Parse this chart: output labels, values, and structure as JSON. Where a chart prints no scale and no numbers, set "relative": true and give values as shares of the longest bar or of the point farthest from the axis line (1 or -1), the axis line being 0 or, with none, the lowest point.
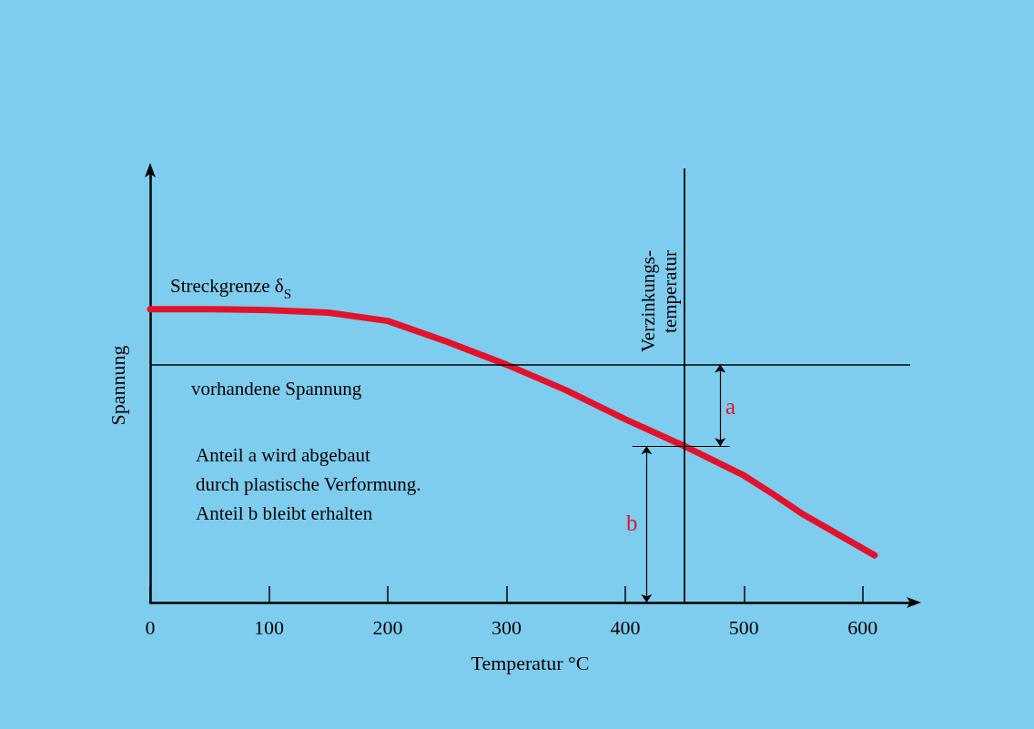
{
  "chart_data": {
    "type": "line",
    "relative": true,
    "xlabel": "Temperatur °C",
    "ylabel": "Spannung",
    "x": [
      0,
      50,
      100,
      150,
      200,
      250,
      300,
      350,
      400,
      450,
      500,
      525,
      550,
      610
    ],
    "series": [
      {
        "color": "#e3122c",
        "values": [
          1.0,
          1.0,
          0.997,
          0.988,
          0.96,
          0.889,
          0.811,
          0.724,
          0.625,
          0.533,
          0.433,
          0.368,
          0.3,
          0.161
        ]
      }
    ],
    "xlim": [
      0,
      640
    ],
    "xticks": [
      0,
      100,
      200,
      300,
      400,
      500,
      600
    ],
    "ref_lines": [
      {
        "axis": "y",
        "value": 0.811,
        "label": "vorhandene Spannung"
      },
      {
        "axis": "x",
        "value": 450,
        "label": "Verzinkungs-\ntemperatur"
      }
    ],
    "annotations": [
      "Streckgrenze δ$_{S}$",
      "Anteil a wird abgebaut\ndurch plastische Verformung.\nAnteil b bleibt erhalten",
      "a",
      "b"
    ],
    "grid": false,
    "marker": "none",
    "line_style": "solid"
  }
}
